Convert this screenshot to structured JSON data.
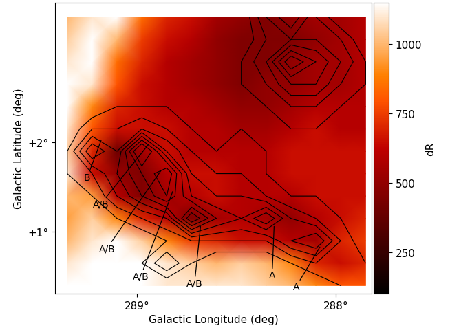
{
  "chart_data": {
    "type": "heatmap",
    "xlabel": "Galactic Longitude (deg)",
    "ylabel": "Galactic Latitude (deg)",
    "xlim": [
      289.41,
      287.82
    ],
    "ylim": [
      0.31,
      3.56
    ],
    "xticks": [
      {
        "value": 289,
        "label": "289°"
      },
      {
        "value": 288,
        "label": "288°"
      }
    ],
    "yticks": [
      {
        "value": 1,
        "label": "+1°"
      },
      {
        "value": 2,
        "label": "+2°"
      }
    ],
    "x": [
      289.35,
      289.225,
      289.1,
      288.975,
      288.85,
      288.725,
      288.6,
      288.475,
      288.35,
      288.225,
      288.1,
      287.975,
      287.85
    ],
    "y": [
      0.4,
      0.65,
      0.9,
      1.15,
      1.4,
      1.65,
      1.9,
      2.15,
      2.4,
      2.65,
      2.9,
      3.15,
      3.4
    ],
    "cells": [
      [
        1150,
        1150,
        1150,
        1150,
        1100,
        1100,
        1100,
        1100,
        1050,
        1000,
        900,
        800,
        800
      ],
      [
        1100,
        1150,
        1150,
        1150,
        1100,
        1050,
        1000,
        1050,
        1000,
        900,
        700,
        650,
        700
      ],
      [
        1000,
        1100,
        1150,
        1050,
        900,
        750,
        700,
        650,
        650,
        600,
        550,
        700,
        750
      ],
      [
        950,
        1050,
        900,
        700,
        600,
        450,
        550,
        600,
        550,
        500,
        600,
        650,
        700
      ],
      [
        1000,
        950,
        600,
        450,
        550,
        600,
        650,
        600,
        600,
        600,
        650,
        650,
        650
      ],
      [
        1100,
        650,
        500,
        450,
        600,
        650,
        650,
        600,
        600,
        650,
        650,
        650,
        650
      ],
      [
        1050,
        700,
        400,
        550,
        650,
        600,
        600,
        600,
        600,
        650,
        650,
        650,
        650
      ],
      [
        1100,
        800,
        650,
        650,
        650,
        600,
        600,
        550,
        550,
        600,
        650,
        600,
        600
      ],
      [
        1150,
        900,
        700,
        650,
        600,
        600,
        550,
        500,
        500,
        550,
        600,
        600,
        600
      ],
      [
        1150,
        1100,
        800,
        650,
        600,
        550,
        500,
        450,
        500,
        500,
        550,
        550,
        600
      ],
      [
        1100,
        1150,
        850,
        700,
        600,
        550,
        500,
        450,
        450,
        500,
        550,
        550,
        600
      ],
      [
        1050,
        1150,
        1000,
        750,
        650,
        600,
        500,
        450,
        450,
        450,
        500,
        550,
        600
      ],
      [
        1000,
        1100,
        1150,
        850,
        700,
        650,
        550,
        500,
        450,
        500,
        550,
        550,
        600
      ]
    ],
    "contour_values": [
      [
        0,
        0,
        0,
        0,
        0,
        0,
        0,
        0,
        0,
        0,
        0,
        1,
        2
      ],
      [
        0,
        0,
        0,
        1,
        3,
        1,
        0,
        0,
        0,
        1,
        2,
        2,
        1
      ],
      [
        0,
        0,
        0,
        0,
        1,
        2,
        2,
        2,
        2,
        4,
        5,
        2,
        0
      ],
      [
        0,
        0,
        1,
        2,
        3,
        8,
        5,
        4,
        6,
        3,
        2,
        1,
        0
      ],
      [
        0,
        1,
        3,
        5,
        7,
        4,
        3,
        3,
        2,
        1,
        1,
        0,
        0
      ],
      [
        1,
        2,
        4,
        6,
        8,
        3,
        2,
        2,
        1,
        1,
        0,
        0,
        0
      ],
      [
        1,
        5,
        3,
        9,
        4,
        2,
        1,
        2,
        1,
        1,
        0,
        0,
        0
      ],
      [
        0,
        2,
        2,
        3,
        2,
        1,
        1,
        1,
        1,
        1,
        1,
        0,
        0
      ],
      [
        0,
        0,
        1,
        1,
        1,
        1,
        0,
        1,
        1,
        2,
        2,
        1,
        0
      ],
      [
        0,
        0,
        0,
        0,
        0,
        0,
        0,
        1,
        2,
        4,
        4,
        2,
        1
      ],
      [
        0,
        0,
        0,
        0,
        0,
        0,
        0,
        1,
        3,
        7,
        5,
        3,
        1
      ],
      [
        0,
        0,
        0,
        0,
        0,
        0,
        0,
        0,
        2,
        3,
        3,
        2,
        0
      ],
      [
        0,
        0,
        0,
        0,
        0,
        0,
        0,
        0,
        3,
        5,
        2,
        0,
        0
      ]
    ],
    "contour_levels": [
      1,
      2,
      3,
      4,
      5,
      6,
      7
    ],
    "colorbar": {
      "label": "dR",
      "range": [
        100,
        1150
      ],
      "ticks": [
        250,
        500,
        750,
        1000
      ]
    },
    "annotations": [
      {
        "text": "B",
        "x": 289.18,
        "y": 2.02
      },
      {
        "text": "A/B",
        "x": 288.94,
        "y": 1.98
      },
      {
        "text": "A/B",
        "x": 288.88,
        "y": 1.68
      },
      {
        "text": "A/B",
        "x": 288.82,
        "y": 1.45
      },
      {
        "text": "A/B",
        "x": 288.68,
        "y": 1.06
      },
      {
        "text": "A",
        "x": 288.31,
        "y": 1.06
      },
      {
        "text": "A",
        "x": 288.08,
        "y": 0.83
      }
    ]
  }
}
